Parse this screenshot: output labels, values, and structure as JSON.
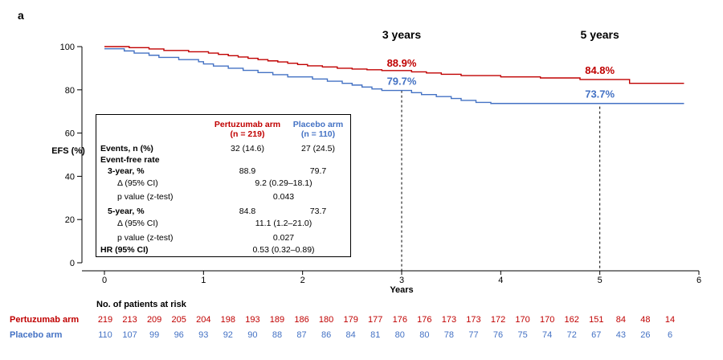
{
  "panel_label": "a",
  "colors": {
    "pertuzumab": "#c00000",
    "placebo": "#4472c4",
    "axis": "#000000"
  },
  "chart_data": {
    "type": "line",
    "xlabel": "Years",
    "ylabel": "EFS (%)",
    "xlim": [
      0,
      6
    ],
    "ylim": [
      0,
      100
    ],
    "x_ticks": [
      "0",
      "1",
      "2",
      "3",
      "4",
      "5",
      "6"
    ],
    "y_ticks": [
      "0",
      "20",
      "40",
      "60",
      "80",
      "100"
    ],
    "grid": false,
    "series": [
      {
        "name": "Pertuzumab arm",
        "x": [
          0,
          0.05,
          0.25,
          0.45,
          0.6,
          0.85,
          1.0,
          1.05,
          1.15,
          1.25,
          1.35,
          1.45,
          1.55,
          1.65,
          1.75,
          1.85,
          1.95,
          2.05,
          2.2,
          2.35,
          2.5,
          2.65,
          2.8,
          2.95,
          3.1,
          3.25,
          3.4,
          3.6,
          3.8,
          4.0,
          4.2,
          4.4,
          4.6,
          4.8,
          5.0,
          5.15,
          5.3,
          5.5,
          5.85
        ],
        "y": [
          100,
          100,
          99.5,
          98.9,
          98.2,
          97.6,
          97.6,
          97.0,
          96.4,
          95.8,
          95.2,
          94.6,
          94.0,
          93.4,
          92.9,
          92.3,
          91.7,
          91.1,
          90.6,
          90.0,
          89.6,
          89.3,
          88.9,
          88.9,
          88.3,
          87.8,
          87.2,
          86.6,
          86.6,
          86.0,
          86.0,
          85.5,
          85.5,
          84.8,
          84.8,
          84.8,
          83.0,
          83.0,
          83.0
        ]
      },
      {
        "name": "Placebo arm",
        "x": [
          0,
          0.08,
          0.2,
          0.3,
          0.45,
          0.55,
          0.75,
          0.95,
          1.0,
          1.1,
          1.25,
          1.4,
          1.55,
          1.7,
          1.85,
          2.0,
          2.1,
          2.25,
          2.4,
          2.5,
          2.6,
          2.7,
          2.8,
          2.9,
          3.0,
          3.1,
          3.2,
          3.35,
          3.5,
          3.6,
          3.75,
          3.9,
          4.0,
          4.15,
          4.3,
          4.5,
          4.7,
          5.0,
          5.3,
          5.6,
          5.85
        ],
        "y": [
          99,
          99,
          98,
          97,
          96,
          95,
          94,
          93,
          92,
          91,
          90,
          89,
          88,
          87,
          86,
          86,
          85,
          84,
          83,
          82.2,
          81.3,
          80.4,
          79.7,
          79.7,
          79.7,
          78.7,
          77.8,
          76.9,
          76.0,
          75.1,
          74.2,
          73.7,
          73.7,
          73.7,
          73.7,
          73.7,
          73.7,
          73.7,
          73.7,
          73.7,
          73.7
        ]
      }
    ],
    "annotations": [
      {
        "text": "3 years",
        "x": 3
      },
      {
        "text": "5 years",
        "x": 5
      },
      {
        "text": "88.9%",
        "x": 3,
        "y": 88.9,
        "series": "Pertuzumab arm"
      },
      {
        "text": "79.7%",
        "x": 3,
        "y": 79.7,
        "series": "Placebo arm"
      },
      {
        "text": "84.8%",
        "x": 5,
        "y": 84.8,
        "series": "Pertuzumab arm"
      },
      {
        "text": "73.7%",
        "x": 5,
        "y": 73.7,
        "series": "Placebo arm"
      }
    ],
    "reference_lines_x": [
      3,
      5
    ]
  },
  "summary_table": {
    "header_pertuzumab_1": "Pertuzumab arm",
    "header_pertuzumab_2": "(n = 219)",
    "header_placebo_1": "Placebo arm",
    "header_placebo_2": "(n = 110)",
    "events_label": "Events, n (%)",
    "events_pertuzumab": "32 (14.6)",
    "events_placebo": "27 (24.5)",
    "efr_label": "Event-free rate",
    "y3_label": "3-year, %",
    "y3_pertuzumab": "88.9",
    "y3_placebo": "79.7",
    "y3_delta_label": "Δ (95% CI)",
    "y3_delta_value": "9.2 (0.29–18.1)",
    "y3_p_label": "p value (z-test)",
    "y3_p_value": "0.043",
    "y5_label": "5-year, %",
    "y5_pertuzumab": "84.8",
    "y5_placebo": "73.7",
    "y5_delta_label": "Δ (95% CI)",
    "y5_delta_value": "11.1 (1.2–21.0)",
    "y5_p_label": "p value (z-test)",
    "y5_p_value": "0.027",
    "hr_label": "HR (95% CI)",
    "hr_value": "0.53 (0.32–0.89)"
  },
  "at_risk": {
    "title": "No. of patients at risk",
    "pertuzumab_label": "Pertuzumab arm",
    "placebo_label": "Placebo arm",
    "pertuzumab": [
      "219",
      "213",
      "209",
      "205",
      "204",
      "198",
      "193",
      "189",
      "186",
      "180",
      "179",
      "177",
      "176",
      "176",
      "173",
      "173",
      "172",
      "170",
      "170",
      "162",
      "151",
      "84",
      "48",
      "14"
    ],
    "placebo": [
      "110",
      "107",
      "99",
      "96",
      "93",
      "92",
      "90",
      "88",
      "87",
      "86",
      "84",
      "81",
      "80",
      "80",
      "78",
      "77",
      "76",
      "75",
      "74",
      "72",
      "67",
      "43",
      "26",
      "6"
    ]
  }
}
